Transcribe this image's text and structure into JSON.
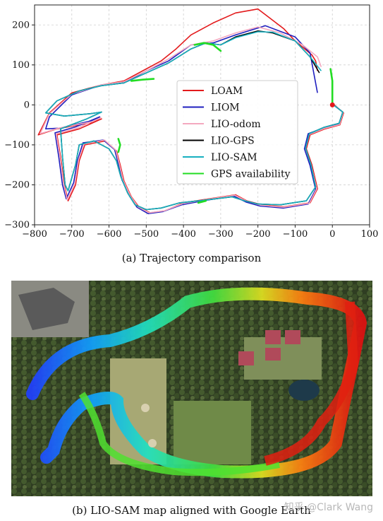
{
  "figure_a": {
    "caption": "(a) Trajectory comparison"
  },
  "figure_b": {
    "caption": "(b) LIO-SAM map aligned with Google Earth"
  },
  "watermark": "知乎 @Clark Wang",
  "chart_data": {
    "type": "line",
    "xlim": [
      -800,
      100
    ],
    "ylim": [
      -300,
      250
    ],
    "xticks": [
      "−800",
      "−700",
      "−600",
      "−500",
      "−400",
      "−300",
      "−200",
      "−100",
      "0",
      "100"
    ],
    "yticks": [
      "−300",
      "−200",
      "−100",
      "0",
      "100",
      "200"
    ],
    "xtick_values": [
      -800,
      -700,
      -600,
      -500,
      -400,
      -300,
      -200,
      -100,
      0,
      100
    ],
    "ytick_values": [
      -300,
      -200,
      -100,
      0,
      100,
      200
    ],
    "grid": true,
    "legend_position": "center",
    "series": [
      {
        "name": "LOAM",
        "color": "#e31a1c",
        "points": [
          [
            -40,
            85
          ],
          [
            -45,
            110
          ],
          [
            -55,
            125
          ],
          [
            -100,
            160
          ],
          [
            -130,
            190
          ],
          [
            -200,
            240
          ],
          [
            -260,
            230
          ],
          [
            -320,
            205
          ],
          [
            -380,
            175
          ],
          [
            -420,
            140
          ],
          [
            -460,
            110
          ],
          [
            -500,
            90
          ],
          [
            -560,
            60
          ],
          [
            -620,
            50
          ],
          [
            -700,
            30
          ],
          [
            -760,
            -20
          ],
          [
            -790,
            -75
          ],
          [
            -740,
            -60
          ],
          [
            -650,
            -45
          ],
          [
            -620,
            -35
          ],
          [
            -680,
            -60
          ],
          [
            -740,
            -75
          ],
          [
            -730,
            -130
          ],
          [
            -720,
            -200
          ],
          [
            -710,
            -240
          ],
          [
            -690,
            -200
          ],
          [
            -680,
            -140
          ],
          [
            -665,
            -100
          ],
          [
            -610,
            -90
          ],
          [
            -580,
            -115
          ],
          [
            -570,
            -150
          ],
          [
            -560,
            -190
          ],
          [
            -540,
            -230
          ],
          [
            -520,
            -255
          ],
          [
            -490,
            -270
          ],
          [
            -450,
            -265
          ],
          [
            -400,
            -245
          ],
          [
            -330,
            -235
          ],
          [
            -260,
            -225
          ],
          [
            -230,
            -240
          ],
          [
            -190,
            -250
          ],
          [
            -130,
            -255
          ],
          [
            -60,
            -245
          ],
          [
            -40,
            -210
          ],
          [
            -55,
            -150
          ],
          [
            -70,
            -110
          ],
          [
            -60,
            -75
          ],
          [
            -20,
            -60
          ],
          [
            20,
            -50
          ],
          [
            30,
            -20
          ],
          [
            5,
            0
          ]
        ]
      },
      {
        "name": "LIOM",
        "color": "#1f1fbf",
        "points": [
          [
            -40,
            30
          ],
          [
            -50,
            80
          ],
          [
            -60,
            130
          ],
          [
            -100,
            170
          ],
          [
            -180,
            198
          ],
          [
            -260,
            175
          ],
          [
            -320,
            155
          ],
          [
            -380,
            150
          ],
          [
            -440,
            110
          ],
          [
            -500,
            85
          ],
          [
            -560,
            55
          ],
          [
            -620,
            50
          ],
          [
            -700,
            25
          ],
          [
            -760,
            -30
          ],
          [
            -770,
            -60
          ],
          [
            -730,
            -58
          ],
          [
            -640,
            -38
          ],
          [
            -625,
            -30
          ],
          [
            -690,
            -55
          ],
          [
            -745,
            -70
          ],
          [
            -735,
            -130
          ],
          [
            -725,
            -200
          ],
          [
            -715,
            -235
          ],
          [
            -695,
            -195
          ],
          [
            -685,
            -140
          ],
          [
            -670,
            -95
          ],
          [
            -615,
            -88
          ],
          [
            -585,
            -112
          ],
          [
            -575,
            -148
          ],
          [
            -565,
            -188
          ],
          [
            -545,
            -228
          ],
          [
            -525,
            -256
          ],
          [
            -495,
            -272
          ],
          [
            -455,
            -267
          ],
          [
            -405,
            -250
          ],
          [
            -335,
            -238
          ],
          [
            -265,
            -228
          ],
          [
            -232,
            -243
          ],
          [
            -195,
            -253
          ],
          [
            -132,
            -258
          ],
          [
            -65,
            -248
          ],
          [
            -45,
            -212
          ],
          [
            -60,
            -152
          ],
          [
            -75,
            -110
          ],
          [
            -65,
            -72
          ],
          [
            -25,
            -58
          ],
          [
            18,
            -48
          ],
          [
            28,
            -18
          ],
          [
            3,
            0
          ]
        ]
      },
      {
        "name": "LIO-odom",
        "color": "#f4a9c0",
        "points": [
          [
            -30,
            95
          ],
          [
            -40,
            120
          ],
          [
            -80,
            150
          ],
          [
            -140,
            180
          ],
          [
            -200,
            195
          ],
          [
            -260,
            180
          ],
          [
            -320,
            160
          ],
          [
            -380,
            150
          ],
          [
            -440,
            115
          ],
          [
            -500,
            85
          ],
          [
            -560,
            58
          ],
          [
            -620,
            50
          ],
          [
            -700,
            27
          ],
          [
            -760,
            -22
          ],
          [
            -785,
            -72
          ],
          [
            -735,
            -58
          ],
          [
            -645,
            -42
          ],
          [
            -622,
            -32
          ],
          [
            -685,
            -58
          ],
          [
            -742,
            -72
          ],
          [
            -732,
            -128
          ],
          [
            -722,
            -198
          ],
          [
            -712,
            -238
          ],
          [
            -692,
            -198
          ],
          [
            -682,
            -138
          ],
          [
            -667,
            -98
          ],
          [
            -612,
            -88
          ],
          [
            -582,
            -113
          ],
          [
            -572,
            -149
          ],
          [
            -562,
            -189
          ],
          [
            -542,
            -229
          ],
          [
            -522,
            -255
          ],
          [
            -492,
            -270
          ],
          [
            -452,
            -265
          ],
          [
            -402,
            -247
          ],
          [
            -332,
            -236
          ],
          [
            -262,
            -226
          ],
          [
            -230,
            -241
          ],
          [
            -192,
            -251
          ],
          [
            -131,
            -256
          ],
          [
            -62,
            -246
          ],
          [
            -42,
            -210
          ],
          [
            -57,
            -150
          ],
          [
            -72,
            -110
          ],
          [
            -62,
            -74
          ],
          [
            -22,
            -59
          ],
          [
            19,
            -49
          ],
          [
            29,
            -19
          ],
          [
            4,
            0
          ]
        ]
      },
      {
        "name": "LIO-GPS",
        "color": "#000000",
        "points": [
          [
            -35,
            80
          ],
          [
            -60,
            120
          ],
          [
            -100,
            160
          ],
          [
            -160,
            180
          ],
          [
            -200,
            185
          ],
          [
            -260,
            170
          ],
          [
            -300,
            150
          ],
          [
            -340,
            155
          ],
          [
            -380,
            140
          ],
          [
            -440,
            105
          ],
          [
            -500,
            80
          ],
          [
            -560,
            55
          ],
          [
            -620,
            48
          ],
          [
            -680,
            35
          ],
          [
            -740,
            10
          ],
          [
            -770,
            -20
          ],
          [
            -720,
            -28
          ],
          [
            -650,
            -22
          ],
          [
            -620,
            -18
          ],
          [
            -660,
            -35
          ],
          [
            -730,
            -60
          ],
          [
            -725,
            -130
          ],
          [
            -718,
            -200
          ],
          [
            -710,
            -215
          ],
          [
            -690,
            -150
          ],
          [
            -680,
            -100
          ],
          [
            -640,
            -90
          ],
          [
            -600,
            -110
          ],
          [
            -580,
            -140
          ],
          [
            -568,
            -180
          ],
          [
            -550,
            -220
          ],
          [
            -530,
            -250
          ],
          [
            -500,
            -262
          ],
          [
            -460,
            -258
          ],
          [
            -410,
            -245
          ],
          [
            -340,
            -238
          ],
          [
            -270,
            -230
          ],
          [
            -235,
            -240
          ],
          [
            -200,
            -248
          ],
          [
            -140,
            -250
          ],
          [
            -70,
            -240
          ],
          [
            -45,
            -205
          ],
          [
            -58,
            -148
          ],
          [
            -72,
            -108
          ],
          [
            -62,
            -72
          ],
          [
            -22,
            -56
          ],
          [
            18,
            -46
          ],
          [
            28,
            -18
          ],
          [
            3,
            0
          ]
        ]
      },
      {
        "name": "LIO-SAM",
        "color": "#17b0c0",
        "points": [
          [
            -30,
            85
          ],
          [
            -60,
            120
          ],
          [
            -100,
            160
          ],
          [
            -160,
            182
          ],
          [
            -200,
            183
          ],
          [
            -260,
            168
          ],
          [
            -300,
            150
          ],
          [
            -340,
            155
          ],
          [
            -380,
            140
          ],
          [
            -440,
            105
          ],
          [
            -500,
            80
          ],
          [
            -560,
            55
          ],
          [
            -620,
            48
          ],
          [
            -680,
            35
          ],
          [
            -740,
            10
          ],
          [
            -770,
            -20
          ],
          [
            -720,
            -28
          ],
          [
            -650,
            -22
          ],
          [
            -620,
            -18
          ],
          [
            -660,
            -35
          ],
          [
            -730,
            -60
          ],
          [
            -725,
            -130
          ],
          [
            -718,
            -200
          ],
          [
            -710,
            -215
          ],
          [
            -690,
            -150
          ],
          [
            -680,
            -100
          ],
          [
            -640,
            -90
          ],
          [
            -600,
            -110
          ],
          [
            -580,
            -140
          ],
          [
            -568,
            -180
          ],
          [
            -550,
            -220
          ],
          [
            -530,
            -250
          ],
          [
            -500,
            -262
          ],
          [
            -460,
            -258
          ],
          [
            -410,
            -245
          ],
          [
            -340,
            -238
          ],
          [
            -270,
            -230
          ],
          [
            -235,
            -240
          ],
          [
            -200,
            -248
          ],
          [
            -140,
            -250
          ],
          [
            -70,
            -240
          ],
          [
            -45,
            -205
          ],
          [
            -58,
            -148
          ],
          [
            -72,
            -108
          ],
          [
            -62,
            -72
          ],
          [
            -22,
            -56
          ],
          [
            18,
            -46
          ],
          [
            28,
            -18
          ],
          [
            3,
            0
          ]
        ]
      },
      {
        "name": "GPS availability",
        "color": "#22dd22",
        "segments": [
          [
            [
              -5,
              90
            ],
            [
              0,
              60
            ],
            [
              0,
              30
            ],
            [
              0,
              5
            ]
          ],
          [
            [
              -370,
              150
            ],
            [
              -345,
              155
            ],
            [
              -320,
              150
            ],
            [
              -300,
              135
            ]
          ],
          [
            [
              -540,
              60
            ],
            [
              -510,
              63
            ],
            [
              -480,
              65
            ]
          ],
          [
            [
              -575,
              -85
            ],
            [
              -570,
              -100
            ],
            [
              -575,
              -118
            ]
          ],
          [
            [
              -360,
              -245
            ],
            [
              -340,
              -240
            ]
          ]
        ]
      }
    ],
    "markers": [
      {
        "x": 0,
        "y": 0,
        "color": "#e31a1c"
      }
    ]
  }
}
